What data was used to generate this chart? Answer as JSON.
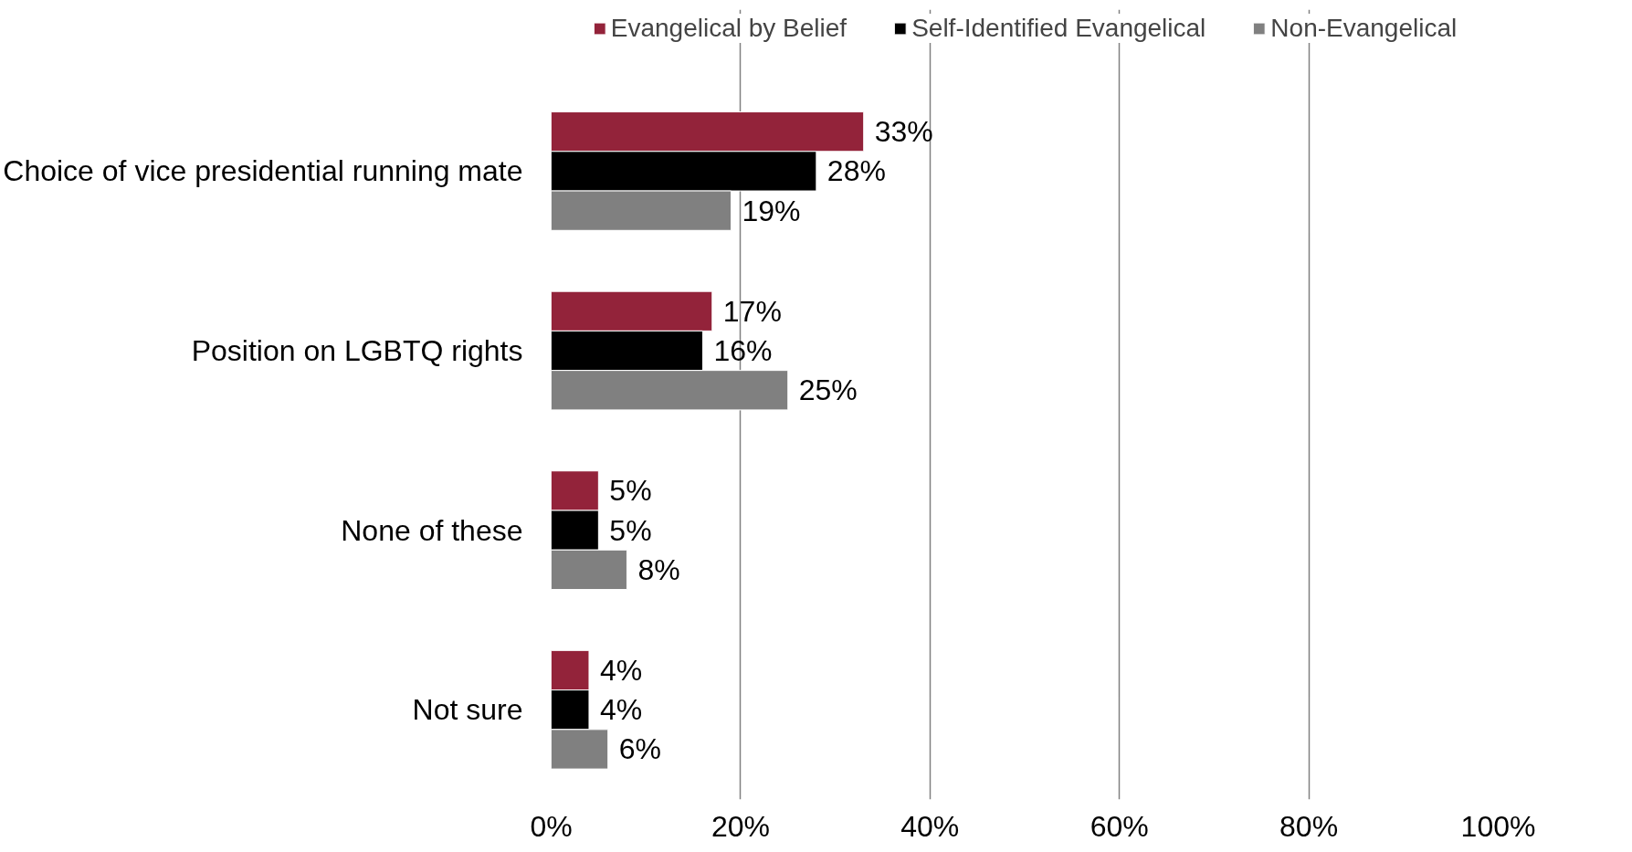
{
  "chart_data": {
    "type": "bar",
    "orientation": "horizontal",
    "categories": [
      "Choice of vice presidential running mate",
      "Position on LGBTQ rights",
      "None of these",
      "Not sure"
    ],
    "series": [
      {
        "name": "Evangelical by Belief",
        "color": "#93233a",
        "values": [
          33,
          17,
          5,
          4
        ],
        "value_labels": [
          "33%",
          "17%",
          "5%",
          "4%"
        ]
      },
      {
        "name": "Self-Identified Evangelical",
        "color": "#000000",
        "values": [
          28,
          16,
          5,
          4
        ],
        "value_labels": [
          "28%",
          "16%",
          "5%",
          "4%"
        ]
      },
      {
        "name": "Non-Evangelical",
        "color": "#808080",
        "values": [
          19,
          25,
          8,
          6
        ],
        "value_labels": [
          "19%",
          "25%",
          "8%",
          "6%"
        ]
      }
    ],
    "xlim": [
      0,
      100
    ],
    "xticks": [
      {
        "value": 0,
        "label": "0%"
      },
      {
        "value": 20,
        "label": "20%"
      },
      {
        "value": 40,
        "label": "40%"
      },
      {
        "value": 60,
        "label": "60%"
      },
      {
        "value": 80,
        "label": "80%"
      },
      {
        "value": 100,
        "label": "100%"
      }
    ],
    "grid": "x",
    "legend": "top"
  }
}
